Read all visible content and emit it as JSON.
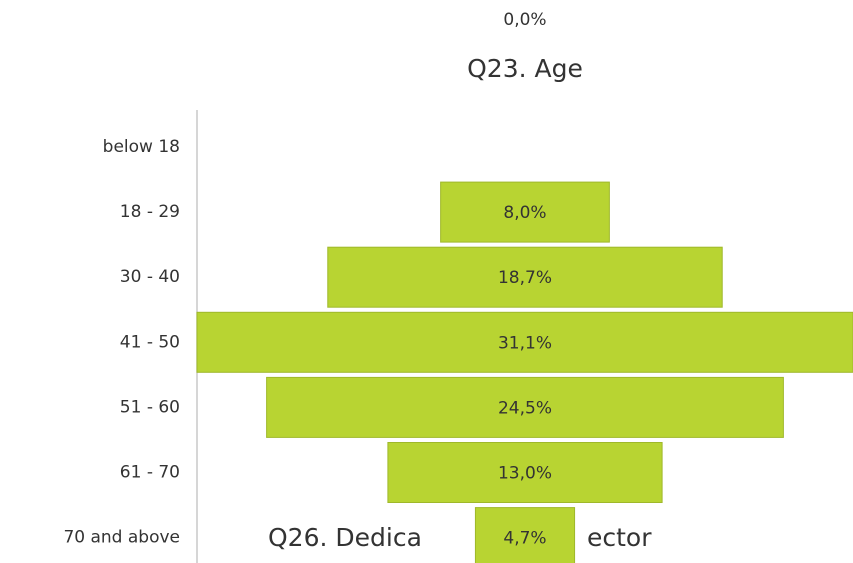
{
  "chart_data": {
    "type": "funnel",
    "title": "Q23. Age",
    "categories": [
      "below 18",
      "18 - 29",
      "30 - 40",
      "41 - 50",
      "51 - 60",
      "61 - 70",
      "70 and above"
    ],
    "values": [
      0,
      8.0,
      18.7,
      31.1,
      24.5,
      13.0,
      4.7
    ],
    "value_labels": [
      "0,0%",
      "8,0%",
      "18,7%",
      "31,1%",
      "24,5%",
      "13,0%",
      "4,7%"
    ],
    "color": "#b8d432",
    "annotations": [
      "Q26. Dedica",
      "ector"
    ]
  }
}
